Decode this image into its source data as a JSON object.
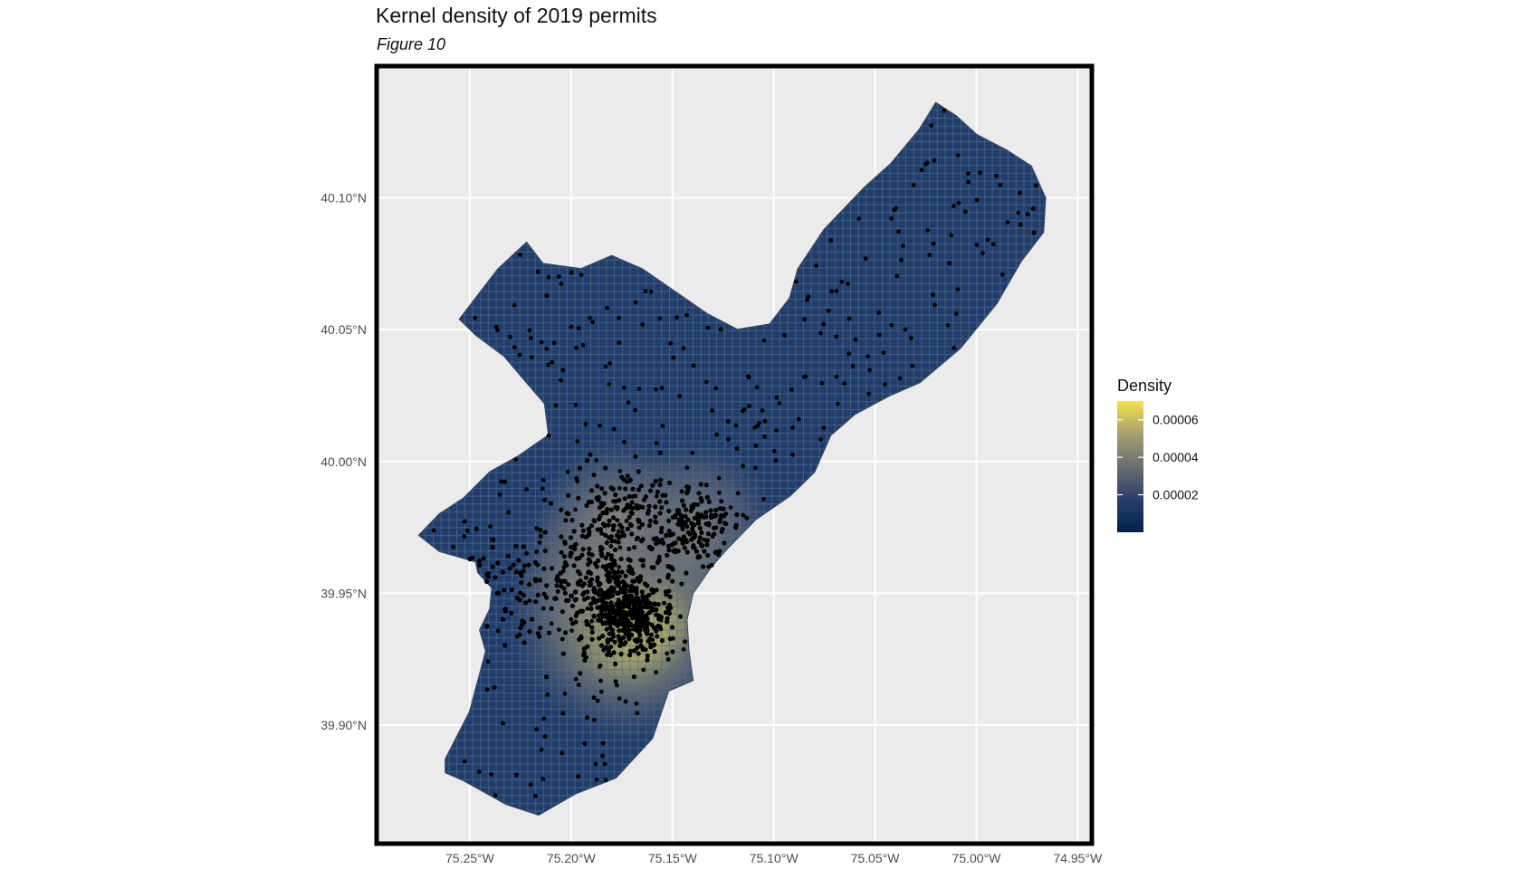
{
  "title": "Kernel density of 2019 permits",
  "subtitle": "Figure 10",
  "colors": {
    "panel_bg": "#ebebeb",
    "grid": "#ffffff",
    "frame": "#000000",
    "cell_border": "#3d4b60",
    "scale_low": "#00204d",
    "scale_mid": "#7c7b78",
    "scale_high": "#f5e24a",
    "point": "#000000"
  },
  "chart_data": {
    "type": "heatmap",
    "title": "Kernel density of 2019 permits",
    "subtitle": "Figure 10",
    "x_axis": {
      "ticks": [
        -75.25,
        -75.2,
        -75.15,
        -75.1,
        -75.05,
        -75.0,
        -74.95
      ],
      "tick_labels": [
        "75.25°W",
        "75.20°W",
        "75.15°W",
        "75.10°W",
        "75.05°W",
        "75.00°W",
        "74.95°W"
      ],
      "range": [
        -75.296,
        -74.943
      ]
    },
    "y_axis": {
      "ticks": [
        39.9,
        39.95,
        40.0,
        40.05,
        40.1
      ],
      "tick_labels": [
        "39.90°N",
        "39.95°N",
        "40.00°N",
        "40.05°N",
        "40.10°N"
      ],
      "range": [
        39.855,
        40.15
      ]
    },
    "grid": true,
    "legend": {
      "title": "Density",
      "position": "right",
      "breaks": [
        2e-05,
        4e-05,
        6e-05
      ],
      "labels": [
        "0.00002",
        "0.00004",
        "0.00006"
      ],
      "range": [
        0,
        7e-05
      ]
    },
    "density_hotspots": [
      {
        "lon": -75.172,
        "lat": 39.942,
        "density": 7e-05
      },
      {
        "lon": -75.185,
        "lat": 39.958,
        "density": 4.5e-05
      },
      {
        "lon": -75.14,
        "lat": 39.975,
        "density": 4e-05
      },
      {
        "lon": -75.178,
        "lat": 39.978,
        "density": 3.5e-05
      }
    ],
    "boundary_lonlat": [
      [
        -75.253,
        39.879
      ],
      [
        -75.262,
        39.882
      ],
      [
        -75.262,
        39.887
      ],
      [
        -75.25,
        39.905
      ],
      [
        -75.242,
        39.928
      ],
      [
        -75.245,
        39.936
      ],
      [
        -75.24,
        39.944
      ],
      [
        -75.239,
        39.952
      ],
      [
        -75.246,
        39.958
      ],
      [
        -75.247,
        39.962
      ],
      [
        -75.265,
        39.966
      ],
      [
        -75.275,
        39.972
      ],
      [
        -75.265,
        39.98
      ],
      [
        -75.253,
        39.986
      ],
      [
        -75.24,
        39.996
      ],
      [
        -75.226,
        40.002
      ],
      [
        -75.211,
        40.01
      ],
      [
        -75.213,
        40.022
      ],
      [
        -75.222,
        40.03
      ],
      [
        -75.233,
        40.04
      ],
      [
        -75.247,
        40.048
      ],
      [
        -75.255,
        40.054
      ],
      [
        -75.246,
        40.063
      ],
      [
        -75.236,
        40.073
      ],
      [
        -75.222,
        40.083
      ],
      [
        -75.214,
        40.075
      ],
      [
        -75.195,
        40.073
      ],
      [
        -75.18,
        40.078
      ],
      [
        -75.165,
        40.073
      ],
      [
        -75.148,
        40.064
      ],
      [
        -75.133,
        40.056
      ],
      [
        -75.118,
        40.05
      ],
      [
        -75.102,
        40.052
      ],
      [
        -75.092,
        40.062
      ],
      [
        -75.088,
        40.073
      ],
      [
        -75.075,
        40.088
      ],
      [
        -75.055,
        40.104
      ],
      [
        -75.042,
        40.113
      ],
      [
        -75.028,
        40.126
      ],
      [
        -75.02,
        40.136
      ],
      [
        -75.01,
        40.131
      ],
      [
        -75.0,
        40.124
      ],
      [
        -74.985,
        40.118
      ],
      [
        -74.973,
        40.112
      ],
      [
        -74.966,
        40.1
      ],
      [
        -74.967,
        40.087
      ],
      [
        -74.978,
        40.076
      ],
      [
        -74.99,
        40.06
      ],
      [
        -75.008,
        40.043
      ],
      [
        -75.028,
        40.03
      ],
      [
        -75.043,
        40.025
      ],
      [
        -75.06,
        40.018
      ],
      [
        -75.072,
        40.01
      ],
      [
        -75.08,
        39.996
      ],
      [
        -75.092,
        39.987
      ],
      [
        -75.109,
        39.978
      ],
      [
        -75.123,
        39.967
      ],
      [
        -75.131,
        39.96
      ],
      [
        -75.14,
        39.95
      ],
      [
        -75.143,
        39.94
      ],
      [
        -75.142,
        39.928
      ],
      [
        -75.14,
        39.917
      ],
      [
        -75.152,
        39.913
      ],
      [
        -75.16,
        39.895
      ],
      [
        -75.178,
        39.88
      ],
      [
        -75.198,
        39.874
      ],
      [
        -75.216,
        39.866
      ],
      [
        -75.232,
        39.87
      ]
    ]
  },
  "points_note_hidden": false
}
